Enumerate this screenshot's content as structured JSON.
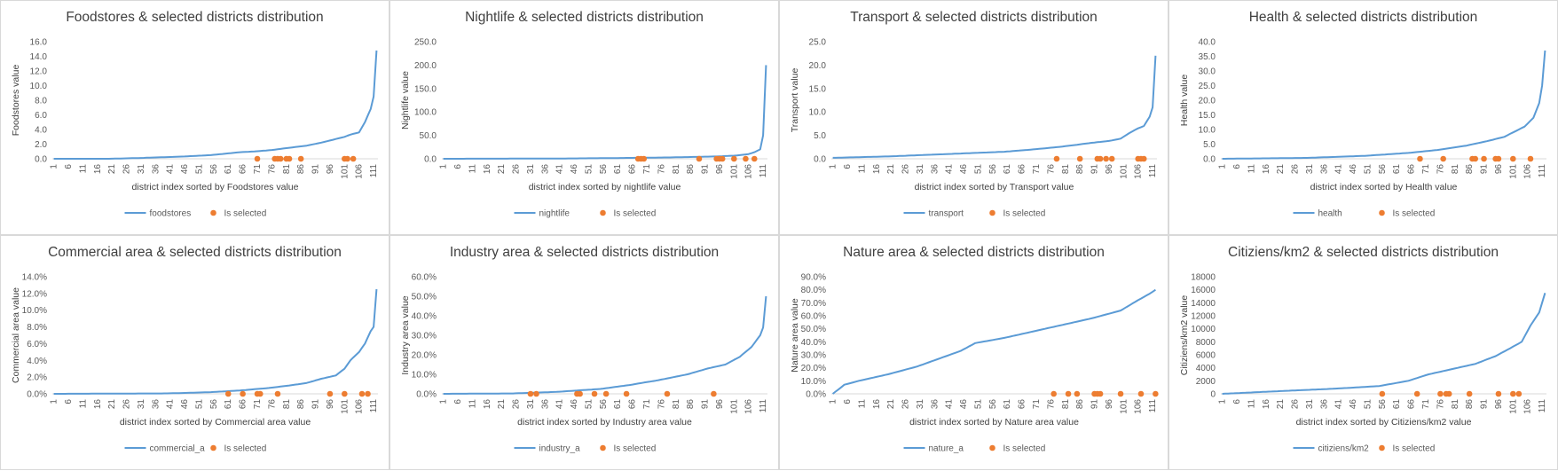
{
  "colors": {
    "line": "#5b9bd5",
    "dot": "#ed7d31",
    "axis": "#d9d9d9",
    "text": "#595959"
  },
  "legend_dot_label": "Is selected",
  "chart_data": [
    {
      "type": "line",
      "title": "Foodstores & selected districts distribution",
      "ylabel": "Foodstores value",
      "xlabel": "district index sorted by Foodstores value",
      "series_name": "foodstores",
      "y_ticks": [
        "0.0",
        "2.0",
        "4.0",
        "6.0",
        "8.0",
        "10.0",
        "12.0",
        "14.0",
        "16.0"
      ],
      "ylim": [
        0,
        16
      ],
      "x_ticks": [
        "1",
        "6",
        "11",
        "16",
        "21",
        "26",
        "31",
        "36",
        "41",
        "46",
        "51",
        "56",
        "61",
        "66",
        "71",
        "76",
        "81",
        "86",
        "91",
        "96",
        "101",
        "106",
        "111"
      ],
      "n": 112,
      "line": [
        [
          1,
          0
        ],
        [
          20,
          0
        ],
        [
          30,
          0.1
        ],
        [
          45,
          0.3
        ],
        [
          55,
          0.5
        ],
        [
          65,
          0.9
        ],
        [
          70,
          1.0
        ],
        [
          76,
          1.2
        ],
        [
          82,
          1.5
        ],
        [
          88,
          1.8
        ],
        [
          93,
          2.2
        ],
        [
          97,
          2.6
        ],
        [
          101,
          3.0
        ],
        [
          103,
          3.3
        ],
        [
          106,
          3.6
        ],
        [
          108,
          5.0
        ],
        [
          110,
          6.8
        ],
        [
          111,
          8.5
        ],
        [
          112,
          14.8
        ]
      ],
      "selected": [
        71,
        77,
        78,
        79,
        81,
        82,
        86,
        101,
        102,
        104
      ]
    },
    {
      "type": "line",
      "title": "Nightlife & selected districts distribution",
      "ylabel": "Nightlife value",
      "xlabel": "district index sorted by nightlife value",
      "series_name": "nightlife",
      "y_ticks": [
        "0.0",
        "50.0",
        "100.0",
        "150.0",
        "200.0",
        "250.0"
      ],
      "ylim": [
        0,
        250
      ],
      "x_ticks": [
        "1",
        "6",
        "11",
        "16",
        "21",
        "26",
        "31",
        "36",
        "41",
        "46",
        "51",
        "56",
        "61",
        "66",
        "71",
        "76",
        "81",
        "86",
        "91",
        "96",
        "101",
        "106",
        "111"
      ],
      "n": 112,
      "line": [
        [
          1,
          0
        ],
        [
          40,
          0.5
        ],
        [
          60,
          1.5
        ],
        [
          80,
          3
        ],
        [
          95,
          5
        ],
        [
          102,
          7
        ],
        [
          106,
          10
        ],
        [
          108,
          14
        ],
        [
          110,
          20
        ],
        [
          111,
          50
        ],
        [
          112,
          200
        ]
      ],
      "selected": [
        68,
        69,
        70,
        89,
        95,
        96,
        97,
        101,
        105,
        108
      ]
    },
    {
      "type": "line",
      "title": "Transport & selected districts distribution",
      "ylabel": "Transport value",
      "xlabel": "district index sorted by Transport value",
      "series_name": "transport",
      "y_ticks": [
        "0.0",
        "5.0",
        "10.0",
        "15.0",
        "20.0",
        "25.0"
      ],
      "ylim": [
        0,
        25
      ],
      "x_ticks": [
        "1",
        "6",
        "11",
        "16",
        "21",
        "26",
        "31",
        "36",
        "41",
        "46",
        "51",
        "56",
        "61",
        "66",
        "71",
        "76",
        "81",
        "86",
        "91",
        "96",
        "101",
        "106",
        "111"
      ],
      "n": 112,
      "line": [
        [
          1,
          0.2
        ],
        [
          20,
          0.5
        ],
        [
          40,
          1.0
        ],
        [
          60,
          1.5
        ],
        [
          70,
          2.0
        ],
        [
          80,
          2.6
        ],
        [
          90,
          3.4
        ],
        [
          96,
          3.8
        ],
        [
          100,
          4.3
        ],
        [
          103,
          5.5
        ],
        [
          106,
          6.5
        ],
        [
          108,
          7.0
        ],
        [
          110,
          9.0
        ],
        [
          111,
          11
        ],
        [
          112,
          22
        ]
      ],
      "selected": [
        78,
        86,
        92,
        93,
        95,
        97,
        106,
        107,
        108
      ]
    },
    {
      "type": "line",
      "title": "Health & selected districts distribution",
      "ylabel": "Health value",
      "xlabel": "district index sorted by Health value",
      "series_name": "health",
      "y_ticks": [
        "0.0",
        "5.0",
        "10.0",
        "15.0",
        "20.0",
        "25.0",
        "30.0",
        "35.0",
        "40.0"
      ],
      "ylim": [
        0,
        40
      ],
      "x_ticks": [
        "1",
        "6",
        "11",
        "16",
        "21",
        "26",
        "31",
        "36",
        "41",
        "46",
        "51",
        "56",
        "61",
        "66",
        "71",
        "76",
        "81",
        "86",
        "91",
        "96",
        "101",
        "106",
        "111"
      ],
      "n": 112,
      "line": [
        [
          1,
          0
        ],
        [
          30,
          0.3
        ],
        [
          50,
          1.0
        ],
        [
          65,
          2.0
        ],
        [
          75,
          3.0
        ],
        [
          85,
          4.5
        ],
        [
          92,
          6.0
        ],
        [
          98,
          7.5
        ],
        [
          102,
          9.5
        ],
        [
          105,
          11
        ],
        [
          108,
          14
        ],
        [
          110,
          19
        ],
        [
          111,
          25
        ],
        [
          112,
          37
        ]
      ],
      "selected": [
        69,
        77,
        87,
        88,
        91,
        95,
        96,
        101,
        107
      ]
    },
    {
      "type": "line",
      "title": "Commercial area & selected districts distribution",
      "ylabel": "Commercial area value",
      "xlabel": "district index sorted by Commercial area value",
      "series_name": "commercial_a",
      "y_ticks": [
        "0.0%",
        "2.0%",
        "4.0%",
        "6.0%",
        "8.0%",
        "10.0%",
        "12.0%",
        "14.0%"
      ],
      "ylim": [
        0,
        14
      ],
      "x_ticks": [
        "1",
        "6",
        "11",
        "16",
        "21",
        "26",
        "31",
        "36",
        "41",
        "46",
        "51",
        "56",
        "61",
        "66",
        "71",
        "76",
        "81",
        "86",
        "91",
        "96",
        "101",
        "106",
        "111"
      ],
      "n": 112,
      "line": [
        [
          1,
          0
        ],
        [
          40,
          0.05
        ],
        [
          55,
          0.2
        ],
        [
          65,
          0.4
        ],
        [
          75,
          0.7
        ],
        [
          82,
          1.0
        ],
        [
          88,
          1.3
        ],
        [
          93,
          1.8
        ],
        [
          98,
          2.2
        ],
        [
          101,
          3.0
        ],
        [
          103,
          4.0
        ],
        [
          106,
          5.0
        ],
        [
          108,
          6.0
        ],
        [
          110,
          7.5
        ],
        [
          111,
          8.0
        ],
        [
          112,
          12.5
        ]
      ],
      "selected": [
        61,
        66,
        71,
        72,
        78,
        96,
        101,
        107,
        109
      ]
    },
    {
      "type": "line",
      "title": "Industry area & selected districts distribution",
      "ylabel": "Industry area value",
      "xlabel": "district index sorted by Industry area value",
      "series_name": "industry_a",
      "y_ticks": [
        "0.0%",
        "10.0%",
        "20.0%",
        "30.0%",
        "40.0%",
        "50.0%",
        "60.0%"
      ],
      "ylim": [
        0,
        60
      ],
      "x_ticks": [
        "1",
        "6",
        "11",
        "16",
        "21",
        "26",
        "31",
        "36",
        "41",
        "46",
        "51",
        "56",
        "61",
        "66",
        "71",
        "76",
        "81",
        "86",
        "91",
        "96",
        "101",
        "106",
        "111"
      ],
      "n": 112,
      "line": [
        [
          1,
          0
        ],
        [
          25,
          0.2
        ],
        [
          40,
          1.0
        ],
        [
          55,
          2.5
        ],
        [
          65,
          4.5
        ],
        [
          75,
          7.0
        ],
        [
          85,
          10
        ],
        [
          92,
          13
        ],
        [
          98,
          15
        ],
        [
          103,
          19
        ],
        [
          107,
          24
        ],
        [
          110,
          30
        ],
        [
          111,
          34
        ],
        [
          112,
          50
        ]
      ],
      "selected": [
        31,
        33,
        47,
        48,
        53,
        57,
        64,
        78,
        94
      ]
    },
    {
      "type": "line",
      "title": "Nature area & selected districts distribution",
      "ylabel": "Nature area value",
      "xlabel": "district index sorted by Nature area value",
      "series_name": "nature_a",
      "y_ticks": [
        "0.0%",
        "10.0%",
        "20.0%",
        "30.0%",
        "40.0%",
        "50.0%",
        "60.0%",
        "70.0%",
        "80.0%",
        "90.0%"
      ],
      "ylim": [
        0,
        90
      ],
      "x_ticks": [
        "1",
        "6",
        "11",
        "16",
        "21",
        "26",
        "31",
        "36",
        "41",
        "46",
        "51",
        "56",
        "61",
        "66",
        "71",
        "76",
        "81",
        "86",
        "91",
        "96",
        "101",
        "106",
        "111"
      ],
      "n": 112,
      "line": [
        [
          1,
          0
        ],
        [
          5,
          7
        ],
        [
          10,
          10
        ],
        [
          20,
          15
        ],
        [
          30,
          21
        ],
        [
          40,
          29
        ],
        [
          45,
          33
        ],
        [
          50,
          39
        ],
        [
          60,
          43
        ],
        [
          70,
          48
        ],
        [
          80,
          53
        ],
        [
          90,
          58
        ],
        [
          100,
          64
        ],
        [
          106,
          72
        ],
        [
          110,
          77
        ],
        [
          112,
          80
        ]
      ],
      "selected": [
        77,
        82,
        85,
        91,
        92,
        93,
        100,
        107,
        112
      ]
    },
    {
      "type": "line",
      "title": "Citiziens/km2 & selected districts distribution",
      "ylabel": "Citiziens/km2 value",
      "xlabel": "district index sorted by Citiziens/km2 value",
      "series_name": "citiziens/km2",
      "y_ticks": [
        "0",
        "2000",
        "4000",
        "6000",
        "8000",
        "10000",
        "12000",
        "14000",
        "16000",
        "18000"
      ],
      "ylim": [
        0,
        18000
      ],
      "x_ticks": [
        "1",
        "6",
        "11",
        "16",
        "21",
        "26",
        "31",
        "36",
        "41",
        "46",
        "51",
        "56",
        "61",
        "66",
        "71",
        "76",
        "81",
        "86",
        "91",
        "96",
        "101",
        "106",
        "111"
      ],
      "n": 112,
      "line": [
        [
          1,
          0
        ],
        [
          20,
          400
        ],
        [
          40,
          800
        ],
        [
          55,
          1200
        ],
        [
          65,
          2000
        ],
        [
          72,
          3000
        ],
        [
          80,
          3800
        ],
        [
          88,
          4600
        ],
        [
          95,
          5800
        ],
        [
          100,
          7000
        ],
        [
          104,
          8000
        ],
        [
          107,
          10500
        ],
        [
          110,
          12500
        ],
        [
          112,
          15500
        ]
      ],
      "selected": [
        56,
        68,
        76,
        78,
        79,
        86,
        96,
        101,
        103
      ]
    }
  ]
}
